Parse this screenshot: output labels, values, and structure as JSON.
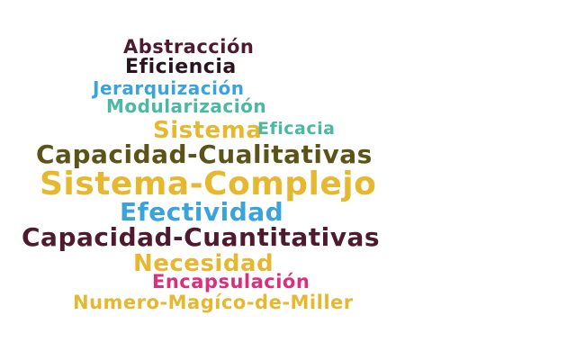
{
  "words": [
    {
      "text": "Abstracción",
      "color": "#4d1a2e"
    },
    {
      "text": "Eficiencia",
      "color": "#2a1420"
    },
    {
      "text": "Jerarquización",
      "color": "#3aa3dc"
    },
    {
      "text": "Modularización",
      "color": "#4bb8a4"
    },
    {
      "text": "Sistema",
      "color": "#e6b830"
    },
    {
      "text": "Eficacia",
      "color": "#4bb8a4"
    },
    {
      "text": "Capacidad-Cualitativas",
      "color": "#5a5418"
    },
    {
      "text": "Sistema-Complejo",
      "color": "#e6b830"
    },
    {
      "text": "Efectividad",
      "color": "#3aa3dc"
    },
    {
      "text": "Capacidad-Cuantitativas",
      "color": "#4d1a2e"
    },
    {
      "text": "Necesidad",
      "color": "#e6b830"
    },
    {
      "text": "Encapsulación",
      "color": "#d8307a"
    },
    {
      "text": "Numero-Magíco-de-Miller",
      "color": "#e6b830"
    }
  ]
}
